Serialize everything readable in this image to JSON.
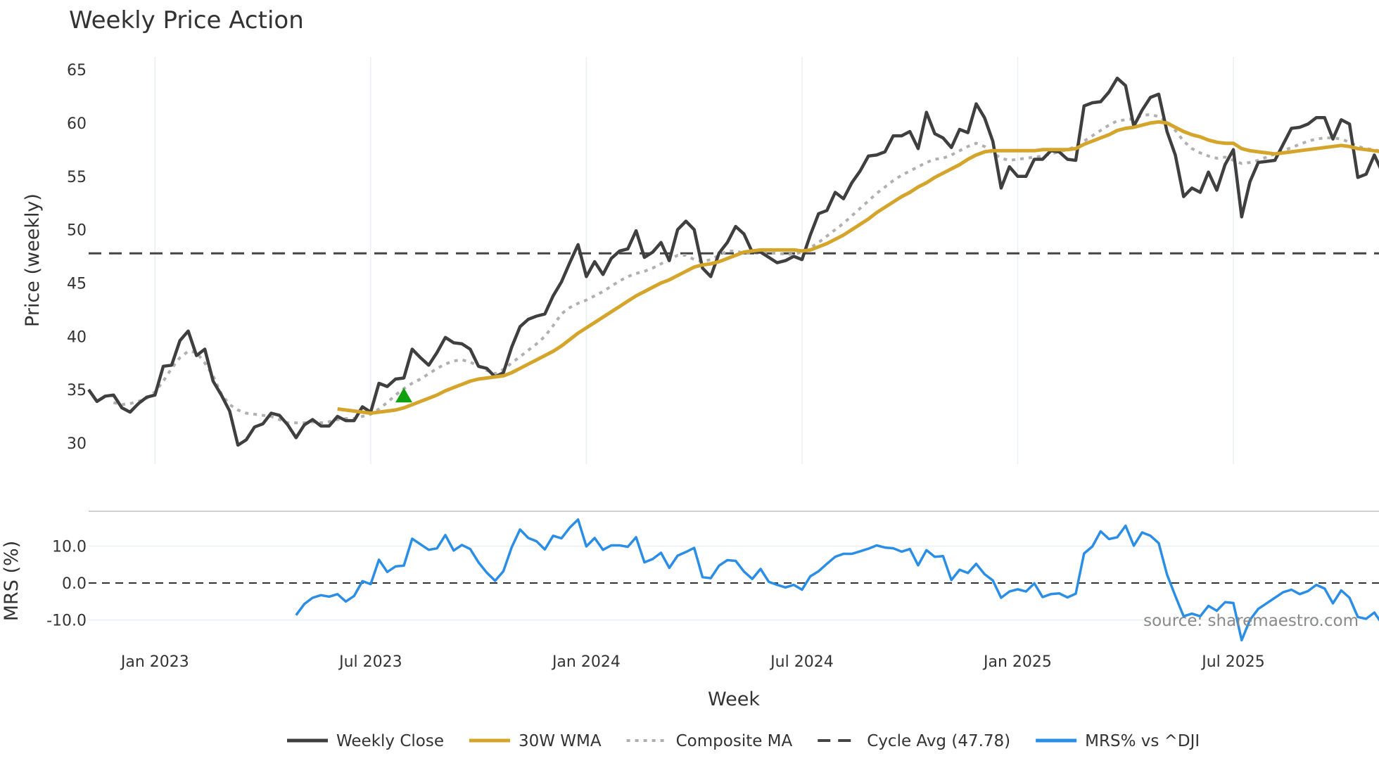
{
  "chart_data": [
    {
      "type": "line",
      "title": "Weekly Price Action",
      "ylabel": "Price (weekly)",
      "ylim": [
        28,
        66
      ],
      "yticks": [
        30,
        35,
        40,
        45,
        50,
        55,
        60,
        65
      ],
      "grid": true,
      "start_week": "2022-11-07",
      "series": [
        {
          "name": "Weekly Close",
          "color": "#3f3f3f",
          "style": "solid",
          "values": [
            35,
            33.9,
            34.4,
            34.5,
            33.3,
            32.9,
            33.7,
            34.3,
            34.5,
            37.2,
            37.3,
            39.6,
            40.5,
            38.2,
            38.8,
            35.8,
            34.5,
            33,
            29.8,
            30.3,
            31.5,
            31.8,
            32.8,
            32.6,
            31.7,
            30.5,
            31.7,
            32.2,
            31.6,
            31.6,
            32.5,
            32.1,
            32.1,
            33.4,
            32.9,
            35.6,
            35.3,
            36,
            36.1,
            38.8,
            38,
            37.3,
            38.5,
            39.9,
            39.4,
            39.3,
            38.8,
            37.2,
            37,
            36.2,
            36.6,
            39,
            40.9,
            41.6,
            41.9,
            42.1,
            43.8,
            45.1,
            46.9,
            48.6,
            45.6,
            47,
            45.8,
            47.3,
            48,
            48.2,
            49.9,
            47.4,
            47.9,
            48.8,
            47.1,
            50,
            50.8,
            50,
            46.4,
            45.6,
            47.8,
            48.8,
            50.3,
            49.6,
            47.9,
            47.9,
            47.4,
            46.9,
            47.1,
            47.5,
            47.2,
            49.5,
            51.5,
            51.8,
            53.5,
            52.9,
            54.4,
            55.5,
            56.9,
            57,
            57.3,
            58.8,
            58.8,
            59.2,
            57.6,
            61,
            59,
            58.6,
            57.7,
            59.4,
            59.1,
            61.8,
            60.5,
            58.3,
            53.9,
            55.9,
            55,
            55,
            56.6,
            56.6,
            57.4,
            57.3,
            56.6,
            56.5,
            61.6,
            61.9,
            62,
            62.9,
            64.2,
            63.5,
            59.7,
            61.2,
            62.4,
            62.7,
            59.2,
            57,
            53.1,
            53.9,
            53.5,
            55.4,
            53.7,
            56.1,
            57.5,
            51.2,
            54.5,
            56.3,
            56.4,
            56.5,
            58,
            59.5,
            59.6,
            59.9,
            60.5,
            60.5,
            58.5,
            60.3,
            59.9,
            54.9,
            55.2,
            57,
            55.3
          ]
        },
        {
          "name": "30W WMA",
          "color": "#d4a52a",
          "style": "solid",
          "values": [
            null,
            null,
            null,
            null,
            null,
            null,
            null,
            null,
            null,
            null,
            null,
            null,
            null,
            null,
            null,
            null,
            null,
            null,
            null,
            null,
            null,
            null,
            null,
            null,
            null,
            null,
            null,
            null,
            null,
            null,
            33.2,
            33.1,
            33,
            32.9,
            32.8,
            32.9,
            33,
            33.1,
            33.3,
            33.6,
            33.9,
            34.2,
            34.5,
            34.9,
            35.2,
            35.5,
            35.8,
            36,
            36.1,
            36.2,
            36.3,
            36.6,
            37,
            37.4,
            37.8,
            38.2,
            38.6,
            39.1,
            39.7,
            40.3,
            40.8,
            41.3,
            41.8,
            42.3,
            42.8,
            43.3,
            43.8,
            44.2,
            44.6,
            45,
            45.3,
            45.7,
            46.1,
            46.5,
            46.7,
            46.8,
            47,
            47.3,
            47.6,
            47.9,
            48,
            48.1,
            48.1,
            48.1,
            48.1,
            48.1,
            48,
            48.1,
            48.4,
            48.7,
            49.1,
            49.5,
            50,
            50.5,
            51,
            51.6,
            52.1,
            52.6,
            53.1,
            53.5,
            54,
            54.4,
            54.9,
            55.3,
            55.7,
            56.1,
            56.6,
            57,
            57.3,
            57.4,
            57.4,
            57.4,
            57.4,
            57.4,
            57.4,
            57.5,
            57.5,
            57.5,
            57.5,
            57.6,
            58,
            58.3,
            58.6,
            58.9,
            59.3,
            59.5,
            59.6,
            59.8,
            60,
            60.1,
            60,
            59.6,
            59.2,
            58.9,
            58.7,
            58.4,
            58.2,
            58.1,
            58.1,
            57.6,
            57.4,
            57.3,
            57.2,
            57.1,
            57.2,
            57.3,
            57.4,
            57.5,
            57.6,
            57.7,
            57.8,
            57.9,
            57.8,
            57.6,
            57.5,
            57.4,
            57.3
          ]
        },
        {
          "name": "Composite MA",
          "color": "#b0b0b0",
          "style": "dotted",
          "values": [
            null,
            null,
            null,
            33.8,
            33.6,
            33.7,
            33.9,
            34.2,
            34.8,
            35.8,
            37,
            38,
            38.6,
            38.5,
            37.5,
            36.3,
            34.6,
            33.6,
            33.1,
            32.8,
            32.7,
            32.6,
            32.5,
            32.2,
            31.9,
            31.9,
            31.9,
            32,
            31.9,
            32,
            32.2,
            32.3,
            32.3,
            32.5,
            32.7,
            33.2,
            33.8,
            34.5,
            35.1,
            35.6,
            36,
            36.5,
            37,
            37.4,
            37.7,
            37.8,
            37.6,
            37.2,
            36.8,
            36.5,
            36.9,
            37.5,
            38.1,
            38.7,
            39.3,
            40,
            41,
            42.1,
            42.7,
            43.1,
            43.4,
            43.8,
            44.2,
            44.7,
            45.2,
            45.6,
            45.9,
            46.1,
            46.4,
            46.8,
            47.2,
            47.6,
            47.6,
            47.2,
            47,
            47.2,
            47.6,
            48,
            48,
            47.8,
            47.8,
            47.8,
            47.8,
            47.8,
            47.7,
            47.7,
            47.9,
            48.3,
            48.8,
            49.4,
            50,
            50.6,
            51.3,
            52,
            52.7,
            53.4,
            54,
            54.6,
            55.1,
            55.5,
            55.9,
            56.3,
            56.6,
            56.7,
            57,
            57.4,
            57.8,
            58.1,
            57.8,
            57.2,
            56.7,
            56.5,
            56.6,
            56.7,
            56.8,
            56.9,
            57.1,
            57.3,
            57.5,
            57.8,
            58.3,
            58.8,
            59.3,
            59.8,
            60.2,
            60.3,
            60.4,
            60.7,
            60.8,
            60.6,
            60.1,
            59.3,
            58.3,
            57.6,
            57.2,
            56.9,
            56.7,
            56.8,
            56.5,
            56.2,
            56.3,
            56.5,
            56.8,
            57.1,
            57.4,
            57.7,
            58,
            58.3,
            58.5,
            58.6,
            58.6,
            58.5,
            58.2,
            57.8,
            57.6,
            57.5,
            57.3
          ]
        },
        {
          "name": "Cycle Avg (47.78)",
          "color": "#444444",
          "style": "dashed",
          "constant": 47.78
        }
      ],
      "markers": [
        {
          "type": "buy-signal",
          "shape": "triangle-up",
          "color": "#10a010",
          "week_index": 38,
          "value": 34.4
        }
      ]
    },
    {
      "type": "line",
      "ylabel": "MRS (%)",
      "ylim": [
        -17,
        19
      ],
      "yticks": [
        {
          "value": 10,
          "label": "10.0"
        },
        {
          "value": 0,
          "label": "0.0"
        },
        {
          "value": -10,
          "label": "-10.0"
        }
      ],
      "xlabel": "Week",
      "xticks": [
        {
          "label": "Jan 2023",
          "date": "2023-01-02"
        },
        {
          "label": "Jul 2023",
          "date": "2023-07-03"
        },
        {
          "label": "Jan 2024",
          "date": "2024-01-01"
        },
        {
          "label": "Jul 2024",
          "date": "2024-07-01"
        },
        {
          "label": "Jan 2025",
          "date": "2024-12-30"
        },
        {
          "label": "Jul 2025",
          "date": "2025-06-30"
        }
      ],
      "zero_line": 0,
      "series": [
        {
          "name": "MRS% vs ^DJI",
          "color": "#2a8de6",
          "style": "solid",
          "values": [
            -8.7,
            -5.7,
            -4,
            -3.3,
            -3.7,
            -3,
            -5,
            -3.5,
            0.5,
            -0.3,
            6.3,
            3,
            4.5,
            4.7,
            12,
            10.5,
            9,
            9.4,
            13,
            8.8,
            10.3,
            9.2,
            5.6,
            2.8,
            0.6,
            3.2,
            9.7,
            14.5,
            12.2,
            11.3,
            9.1,
            12.8,
            12.1,
            15,
            17.2,
            9.9,
            12.2,
            9,
            10.2,
            10.2,
            9.8,
            12.4,
            5.6,
            6.5,
            8.2,
            4.1,
            7.4,
            8.4,
            9.5,
            1.6,
            1.3,
            4.7,
            6.2,
            6,
            3.1,
            1.1,
            3.8,
            0.3,
            -0.5,
            -1.2,
            -0.5,
            -1.8,
            1.8,
            3.2,
            5.2,
            7.1,
            7.9,
            7.9,
            8.6,
            9.3,
            10.2,
            9.6,
            9.4,
            8.5,
            9.2,
            4.8,
            8.9,
            7.1,
            7.3,
            0.8,
            3.6,
            2.7,
            5.2,
            2.4,
            0.7,
            -4,
            -2.3,
            -1.7,
            -2.3,
            -0.1,
            -3.8,
            -3,
            -2.8,
            -3.9,
            -2.9,
            8,
            9.9,
            14,
            11.9,
            12.4,
            15.5,
            10.1,
            13.7,
            12.8,
            10.8,
            2.3,
            -3.5,
            -9,
            -8.3,
            -9,
            -6.2,
            -7.5,
            -5.2,
            -5.4,
            -15.5,
            -10,
            -7,
            -5.5,
            -4,
            -2.5,
            -1.8,
            -3,
            -2.2,
            -0.5,
            -1.5,
            -5.5,
            -2,
            -4,
            -9.2,
            -9.7,
            -8,
            -11.3
          ]
        }
      ]
    }
  ],
  "legend": {
    "placement": "bottom-center",
    "items": [
      {
        "label": "Weekly Close",
        "color": "#3f3f3f",
        "style": "solid"
      },
      {
        "label": "30W WMA",
        "color": "#d4a52a",
        "style": "solid"
      },
      {
        "label": "Composite MA",
        "color": "#b0b0b0",
        "style": "dotted"
      },
      {
        "label": "Cycle Avg (47.78)",
        "color": "#444444",
        "style": "dashed"
      },
      {
        "label": "MRS% vs ^DJI",
        "color": "#2a8de6",
        "style": "solid"
      }
    ]
  },
  "source_note": "source: sharemaestro.com"
}
